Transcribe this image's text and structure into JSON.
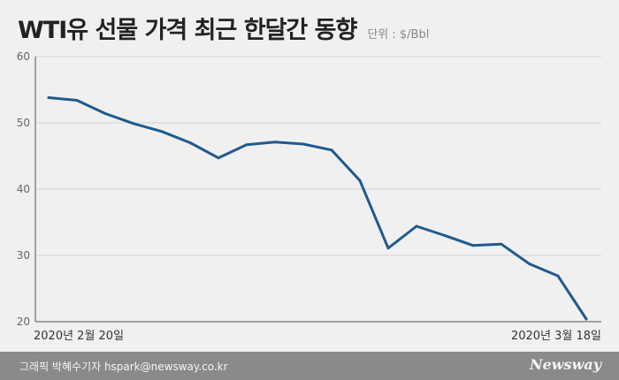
{
  "header": {
    "title": "WTI유 선물 가격 최근 한달간 동향",
    "unit": "단위 : $/Bbl"
  },
  "footer": {
    "credit": "그래픽 박혜수기자 hspark@newsway.co.kr",
    "brand": "Newsway"
  },
  "colors": {
    "line": "#1f5a8f",
    "grid": "#d2d2d2",
    "axis": "#555555",
    "background": "#f0f0f0"
  },
  "chart_data": {
    "type": "line",
    "title": "WTI유 선물 가격 최근 한달간 동향",
    "ylabel": "",
    "xlabel": "",
    "ylim": [
      20,
      60
    ],
    "yticks": [
      20,
      30,
      40,
      50,
      60
    ],
    "grid": true,
    "x_labels_shown": [
      "2020년 2월 20일",
      "2020년 3월 18일"
    ],
    "series": [
      {
        "values": [
          53.8,
          53.4,
          51.4,
          49.9,
          48.7,
          47.0,
          44.7,
          46.7,
          47.1,
          46.8,
          45.9,
          41.3,
          31.1,
          34.4,
          33.0,
          31.5,
          31.7,
          28.7,
          26.9,
          20.4
        ]
      }
    ]
  }
}
